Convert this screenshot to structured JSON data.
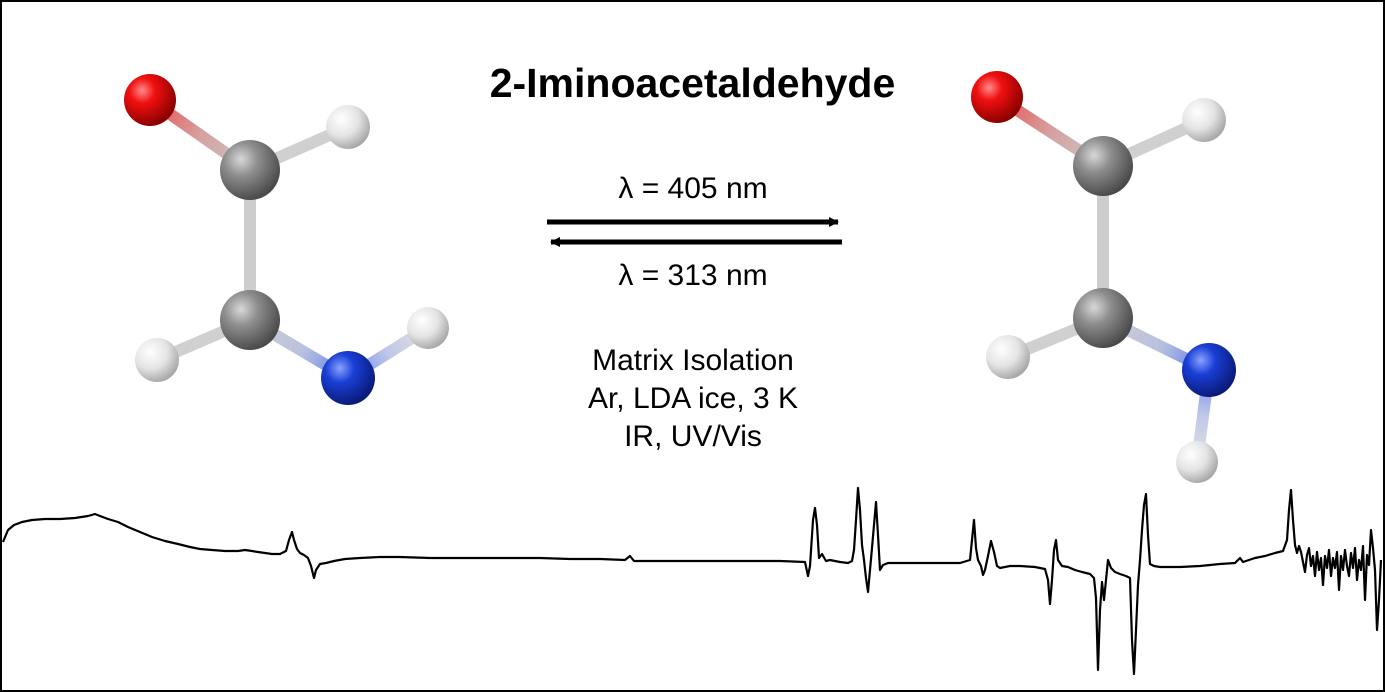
{
  "title": "2-Iminoacetaldehyde",
  "forward_wavelength": "λ = 405 nm",
  "reverse_wavelength": "λ = 313 nm",
  "conditions": [
    "Matrix Isolation",
    "Ar, LDA ice, 3 K",
    "IR, UV/Vis"
  ],
  "atom_colors": {
    "oxygen": "#e81010",
    "carbon": "#8a8a8a",
    "nitrogen": "#1a3fd6",
    "hydrogen": "#e6e6e6"
  },
  "molecules": [
    {
      "name": "left-conformer",
      "atoms": [
        "O",
        "C",
        "H",
        "C",
        "H",
        "N",
        "H"
      ]
    },
    {
      "name": "right-conformer",
      "atoms": [
        "O",
        "C",
        "H",
        "C",
        "H",
        "N",
        "H"
      ]
    }
  ]
}
